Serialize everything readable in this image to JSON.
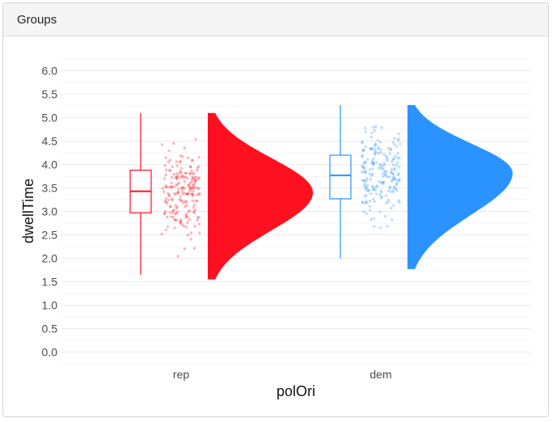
{
  "panel": {
    "title": "Groups"
  },
  "chart_data": {
    "type": "raincloud",
    "xlabel": "polOri",
    "ylabel": "dwellTime",
    "ylim": [
      0.0,
      6.0
    ],
    "y_ticks": [
      "0.0",
      "0.5",
      "1.0",
      "1.5",
      "2.0",
      "2.5",
      "3.0",
      "3.5",
      "4.0",
      "4.5",
      "5.0",
      "5.5",
      "6.0"
    ],
    "categories": [
      "rep",
      "dem"
    ],
    "grid": true,
    "legend": "none",
    "groups": [
      {
        "category": "rep",
        "color": "#ff1020",
        "box": {
          "min": 1.65,
          "q1": 2.97,
          "median": 3.43,
          "q3": 3.88,
          "max": 5.1
        },
        "density_range": [
          1.55,
          5.1
        ],
        "density_peak": 3.4
      },
      {
        "category": "dem",
        "color": "#2a93ff",
        "box": {
          "min": 2.0,
          "q1": 3.27,
          "median": 3.77,
          "q3": 4.2,
          "max": 5.27
        },
        "density_range": [
          1.77,
          5.27
        ],
        "density_peak": 3.82
      }
    ]
  }
}
